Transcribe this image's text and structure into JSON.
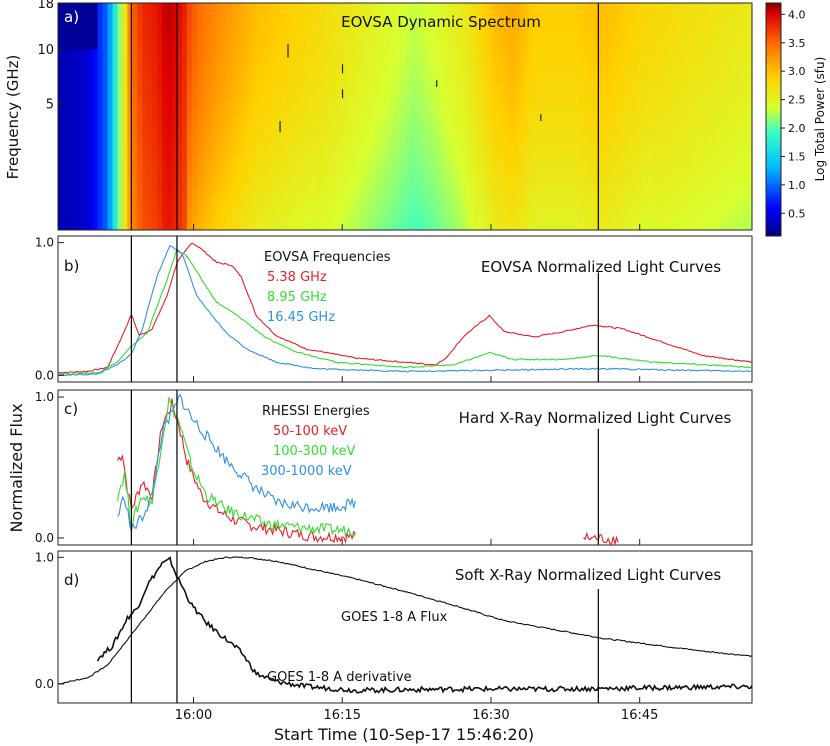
{
  "colors": {
    "red": "#e8202a",
    "green": "#33dd33",
    "blue": "#3090e8",
    "black": "#111111"
  },
  "shared": {
    "xlabel": "Start Time (10-Sep-17  15:46:20)",
    "x_ticks": [
      "16:00",
      "16:15",
      "16:30",
      "16:45"
    ],
    "x_tick_minutes": [
      13.67,
      28.67,
      43.67,
      58.67
    ],
    "xlim_minutes": [
      0,
      70
    ],
    "shared_ylabel": "Normalized Flux",
    "event_lines_minutes": [
      7.4,
      12.0,
      54.5
    ]
  },
  "chart_data": [
    {
      "type": "heatmap",
      "panel_label": "a)",
      "title": "EOVSA Dynamic Spectrum",
      "ylabel": "Frequency (GHz)",
      "y_ticks": [
        "5",
        "10",
        "18"
      ],
      "colorbar": {
        "label": "Log Total Power (sfu)",
        "ticks": [
          "0.5",
          "1.0",
          "1.5",
          "2.0",
          "2.5",
          "3.0",
          "3.5",
          "4.0"
        ],
        "tick_values": [
          0.5,
          1.0,
          1.5,
          2.0,
          2.5,
          3.0,
          3.5,
          4.0
        ],
        "range": [
          0.1,
          4.2
        ]
      },
      "time_profile": [
        [
          0,
          0.3
        ],
        [
          3,
          0.4
        ],
        [
          5,
          1.0
        ],
        [
          6.5,
          2.4
        ],
        [
          7.4,
          3.4
        ],
        [
          8.5,
          3.7
        ],
        [
          10,
          3.8
        ],
        [
          11,
          4.0
        ],
        [
          12,
          3.9
        ],
        [
          14,
          3.5
        ],
        [
          16,
          3.3
        ],
        [
          20,
          3.0
        ],
        [
          26,
          2.8
        ],
        [
          30,
          2.6
        ],
        [
          34,
          2.4
        ],
        [
          36,
          2.3
        ],
        [
          38,
          2.4
        ],
        [
          41,
          2.6
        ],
        [
          44,
          3.0
        ],
        [
          46,
          3.1
        ],
        [
          48,
          2.9
        ],
        [
          52,
          2.9
        ],
        [
          55,
          3.0
        ],
        [
          60,
          2.8
        ],
        [
          65,
          2.7
        ],
        [
          70,
          2.6
        ]
      ]
    },
    {
      "type": "line",
      "panel_label": "b)",
      "title": "EOVSA Normalized Light Curves",
      "legend_title": "EOVSA Frequencies",
      "yticks": [
        "0.0",
        "1.0"
      ],
      "ylim": [
        -0.05,
        1.05
      ],
      "series": [
        {
          "name": "5.38 GHz",
          "points": [
            [
              0,
              0.02
            ],
            [
              3,
              0.03
            ],
            [
              5,
              0.06
            ],
            [
              6.5,
              0.3
            ],
            [
              7.4,
              0.46
            ],
            [
              8.2,
              0.3
            ],
            [
              9.5,
              0.35
            ],
            [
              11,
              0.6
            ],
            [
              12,
              0.85
            ],
            [
              13.5,
              1.0
            ],
            [
              14.5,
              0.95
            ],
            [
              16,
              0.85
            ],
            [
              17.5,
              0.83
            ],
            [
              18.5,
              0.74
            ],
            [
              20,
              0.45
            ],
            [
              22,
              0.3
            ],
            [
              25,
              0.2
            ],
            [
              30,
              0.13
            ],
            [
              38,
              0.08
            ],
            [
              39,
              0.12
            ],
            [
              41,
              0.3
            ],
            [
              43.5,
              0.45
            ],
            [
              45,
              0.33
            ],
            [
              48,
              0.29
            ],
            [
              51,
              0.33
            ],
            [
              54,
              0.38
            ],
            [
              57,
              0.35
            ],
            [
              61,
              0.25
            ],
            [
              65,
              0.15
            ],
            [
              70,
              0.1
            ]
          ]
        },
        {
          "name": "8.95 GHz",
          "points": [
            [
              0,
              0.01
            ],
            [
              4,
              0.02
            ],
            [
              6,
              0.1
            ],
            [
              7.4,
              0.22
            ],
            [
              9,
              0.32
            ],
            [
              11,
              0.72
            ],
            [
              12,
              0.95
            ],
            [
              13,
              0.9
            ],
            [
              14.5,
              0.72
            ],
            [
              16,
              0.55
            ],
            [
              17.5,
              0.48
            ],
            [
              19,
              0.4
            ],
            [
              21,
              0.28
            ],
            [
              24,
              0.18
            ],
            [
              28,
              0.1
            ],
            [
              35,
              0.06
            ],
            [
              40,
              0.08
            ],
            [
              43.5,
              0.17
            ],
            [
              46,
              0.12
            ],
            [
              51,
              0.12
            ],
            [
              54.5,
              0.15
            ],
            [
              60,
              0.1
            ],
            [
              70,
              0.06
            ]
          ]
        },
        {
          "name": "16.45 GHz",
          "points": [
            [
              0,
              0.0
            ],
            [
              4,
              0.01
            ],
            [
              6,
              0.08
            ],
            [
              7.4,
              0.16
            ],
            [
              8.5,
              0.35
            ],
            [
              10,
              0.75
            ],
            [
              11.3,
              0.98
            ],
            [
              12.5,
              0.92
            ],
            [
              14,
              0.6
            ],
            [
              15.5,
              0.45
            ],
            [
              17,
              0.32
            ],
            [
              19,
              0.2
            ],
            [
              22,
              0.1
            ],
            [
              26,
              0.05
            ],
            [
              35,
              0.03
            ],
            [
              45,
              0.04
            ],
            [
              55,
              0.05
            ],
            [
              70,
              0.03
            ]
          ]
        }
      ]
    },
    {
      "type": "line",
      "panel_label": "c)",
      "title": "Hard X-Ray Normalized Light Curves",
      "legend_title": "RHESSI Energies",
      "yticks": [
        "0.0",
        "1.0"
      ],
      "ylim": [
        -0.05,
        1.05
      ],
      "series": [
        {
          "name": "50-100 keV",
          "segments": [
            [
              [
                6,
                0.55
              ],
              [
                6.5,
                0.6
              ],
              [
                7,
                0.35
              ],
              [
                7.4,
                0.2
              ],
              [
                8.5,
                0.4
              ],
              [
                9.5,
                0.3
              ],
              [
                10.5,
                0.8
              ],
              [
                11.5,
                0.95
              ],
              [
                12.2,
                0.8
              ],
              [
                13,
                0.55
              ],
              [
                14.5,
                0.3
              ],
              [
                16,
                0.2
              ],
              [
                18,
                0.12
              ],
              [
                20,
                0.08
              ],
              [
                24,
                0.03
              ],
              [
                26,
                0.01
              ],
              [
                30,
                0.01
              ]
            ],
            [
              [
                53,
                0.0
              ],
              [
                56.5,
                -0.01
              ]
            ]
          ]
        },
        {
          "name": "100-300 keV",
          "segments": [
            [
              [
                6,
                0.3
              ],
              [
                6.7,
                0.45
              ],
              [
                7.4,
                0.1
              ],
              [
                8.5,
                0.3
              ],
              [
                9.5,
                0.25
              ],
              [
                10.5,
                0.7
              ],
              [
                11.2,
                0.98
              ],
              [
                12.2,
                0.82
              ],
              [
                13.5,
                0.5
              ],
              [
                15,
                0.3
              ],
              [
                17,
                0.2
              ],
              [
                19,
                0.15
              ],
              [
                21,
                0.1
              ],
              [
                25,
                0.07
              ],
              [
                30,
                0.05
              ]
            ]
          ]
        },
        {
          "name": "300-1000 keV",
          "segments": [
            [
              [
                6,
                0.15
              ],
              [
                6.7,
                0.3
              ],
              [
                7.4,
                0.05
              ],
              [
                8.5,
                0.15
              ],
              [
                9.5,
                0.3
              ],
              [
                10.5,
                0.75
              ],
              [
                11.5,
                0.88
              ],
              [
                12.3,
                1.0
              ],
              [
                13.5,
                0.85
              ],
              [
                15,
                0.72
              ],
              [
                17,
                0.55
              ],
              [
                18.5,
                0.45
              ],
              [
                20,
                0.35
              ],
              [
                22,
                0.25
              ],
              [
                25,
                0.22
              ],
              [
                28,
                0.22
              ],
              [
                30,
                0.25
              ]
            ]
          ]
        }
      ]
    },
    {
      "type": "line",
      "panel_label": "d)",
      "title": "Soft X-Ray Normalized Light Curves",
      "yticks": [
        "0.0",
        "1.0"
      ],
      "ylim": [
        -0.15,
        1.05
      ],
      "series": [
        {
          "name": "GOES 1-8 A Flux",
          "points": [
            [
              0,
              0.0
            ],
            [
              3,
              0.05
            ],
            [
              5,
              0.15
            ],
            [
              7,
              0.35
            ],
            [
              9,
              0.55
            ],
            [
              11,
              0.75
            ],
            [
              13,
              0.9
            ],
            [
              15,
              0.97
            ],
            [
              17,
              1.0
            ],
            [
              19,
              1.0
            ],
            [
              22,
              0.97
            ],
            [
              26,
              0.9
            ],
            [
              30,
              0.83
            ],
            [
              35,
              0.73
            ],
            [
              40,
              0.62
            ],
            [
              45,
              0.5
            ],
            [
              50,
              0.43
            ],
            [
              55,
              0.36
            ],
            [
              60,
              0.31
            ],
            [
              65,
              0.26
            ],
            [
              70,
              0.22
            ]
          ]
        },
        {
          "name": "GOES 1-8 A derivative",
          "points": [
            [
              4,
              0.2
            ],
            [
              5.5,
              0.3
            ],
            [
              7,
              0.52
            ],
            [
              8,
              0.6
            ],
            [
              9,
              0.78
            ],
            [
              10.5,
              0.95
            ],
            [
              11.3,
              0.98
            ],
            [
              12,
              0.85
            ],
            [
              13.5,
              0.62
            ],
            [
              15,
              0.48
            ],
            [
              17,
              0.35
            ],
            [
              18.5,
              0.25
            ],
            [
              20,
              0.08
            ],
            [
              22,
              0.02
            ],
            [
              25,
              -0.02
            ],
            [
              30,
              -0.05
            ],
            [
              40,
              -0.04
            ],
            [
              50,
              -0.04
            ],
            [
              60,
              -0.03
            ],
            [
              70,
              -0.02
            ]
          ]
        }
      ]
    }
  ]
}
